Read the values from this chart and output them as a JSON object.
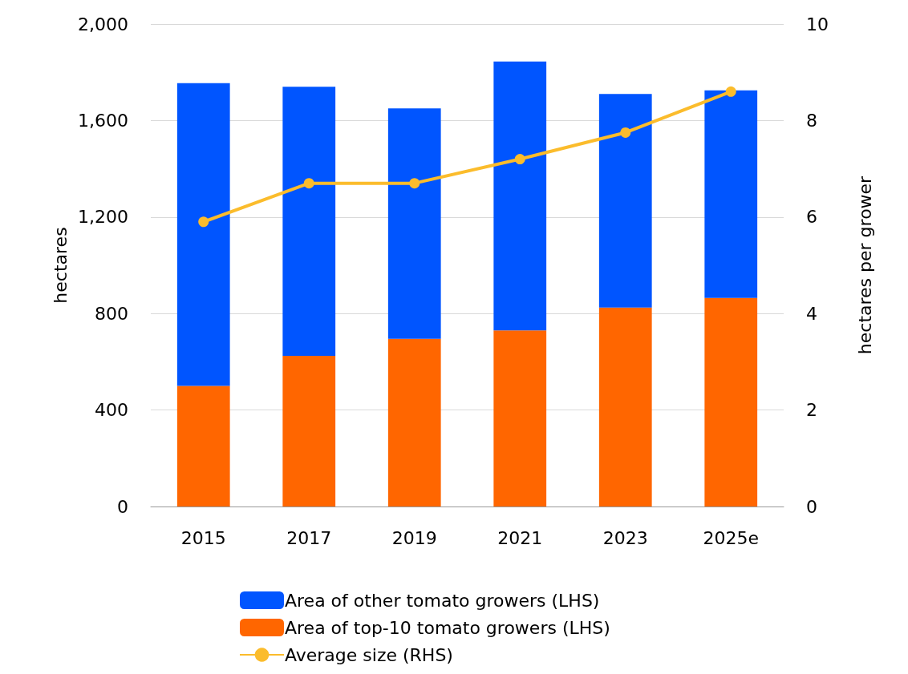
{
  "chart_data": {
    "type": "bar",
    "stacked": true,
    "ylabel": "hectares",
    "y2label": "hectares per grower",
    "categories": [
      "2015",
      "2017",
      "2019",
      "2021",
      "2023",
      "2025e"
    ],
    "series": [
      {
        "name": "Area of top-10 tomato growers (LHS)",
        "color": "#ff6600",
        "values": [
          500,
          625,
          695,
          730,
          825,
          865
        ]
      },
      {
        "name": "Area of other tomato growers (LHS)",
        "color": "#0055ff",
        "values": [
          1255,
          1115,
          955,
          1115,
          885,
          860
        ]
      },
      {
        "name": "Average size (RHS)",
        "type": "line",
        "axis": "y2",
        "color": "#fbbc2c",
        "marker": "circle",
        "values": [
          5.9,
          6.7,
          6.7,
          7.2,
          7.75,
          8.6
        ]
      }
    ],
    "ylim": [
      0,
      2000
    ],
    "yticks": [
      0,
      {
        "value": 400,
        "label": "400"
      },
      {
        "value": 800,
        "label": "800"
      },
      {
        "value": 1200,
        "label": "1,200"
      },
      {
        "value": 1600,
        "label": "1,600"
      },
      {
        "value": 2000,
        "label": "2,000"
      }
    ],
    "y2lim": [
      0,
      10
    ],
    "y2ticks": [
      0,
      2,
      4,
      6,
      8,
      10
    ],
    "grid": "y",
    "legend": "bottom"
  }
}
